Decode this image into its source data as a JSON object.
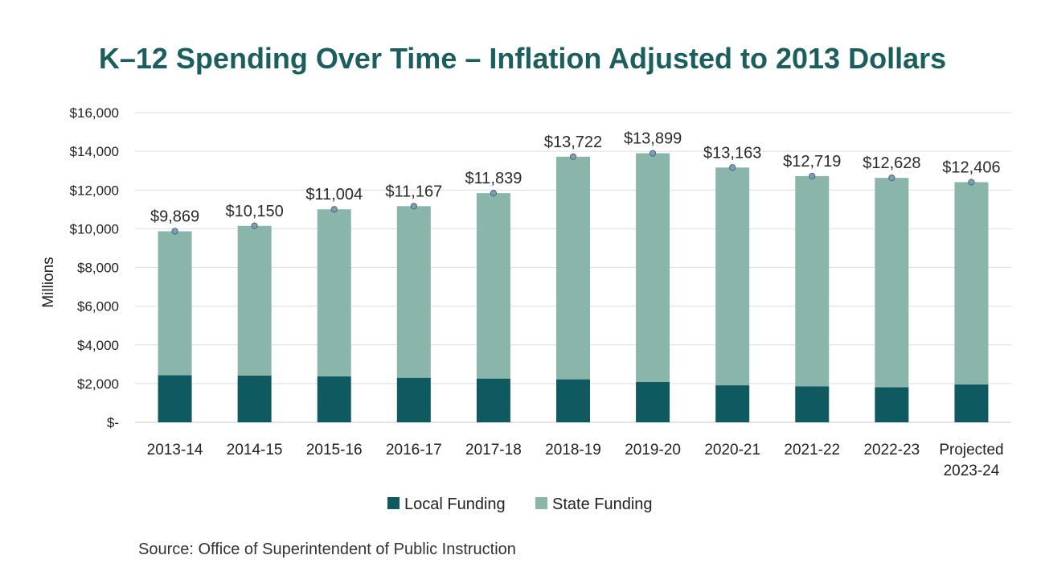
{
  "title": "K–12 Spending Over Time – Inflation Adjusted to 2013 Dollars",
  "source": "Source: Office of Superintendent of Public Instruction",
  "chart_data": {
    "type": "bar",
    "stacked": true,
    "title": "K–12 Spending Over Time – Inflation Adjusted to 2013 Dollars",
    "xlabel": "",
    "ylabel": "Millions",
    "ylim": [
      0,
      16000
    ],
    "yticks": [
      0,
      2000,
      4000,
      6000,
      8000,
      10000,
      12000,
      14000,
      16000
    ],
    "ytick_labels": [
      "$-",
      "$2,000",
      "$4,000",
      "$6,000",
      "$8,000",
      "$10,000",
      "$12,000",
      "$14,000",
      "$16,000"
    ],
    "grid": true,
    "legend_position": "bottom",
    "categories": [
      [
        "2013-14"
      ],
      [
        "2014-15"
      ],
      [
        "2015-16"
      ],
      [
        "2016-17"
      ],
      [
        "2017-18"
      ],
      [
        "2018-19"
      ],
      [
        "2019-20"
      ],
      [
        "2020-21"
      ],
      [
        "2021-22"
      ],
      [
        "2022-23"
      ],
      [
        "Projected",
        "2023-24"
      ]
    ],
    "series": [
      {
        "name": "Local Funding",
        "color": "#0f5a60",
        "values": [
          2430,
          2410,
          2370,
          2300,
          2260,
          2220,
          2080,
          1910,
          1860,
          1810,
          1960
        ]
      },
      {
        "name": "State Funding",
        "color": "#8ab5ab",
        "values": [
          7439,
          7740,
          8634,
          8867,
          9579,
          11502,
          11819,
          11253,
          10859,
          10818,
          10446
        ]
      }
    ],
    "totals": [
      9869,
      10150,
      11004,
      11167,
      11839,
      13722,
      13899,
      13163,
      12719,
      12628,
      12406
    ],
    "total_labels": [
      "$9,869",
      "$10,150",
      "$11,004",
      "$11,167",
      "$11,839",
      "$13,722",
      "$13,899",
      "$13,163",
      "$12,719",
      "$12,628",
      "$12,406"
    ],
    "marker_color": "#7d9eb5"
  }
}
